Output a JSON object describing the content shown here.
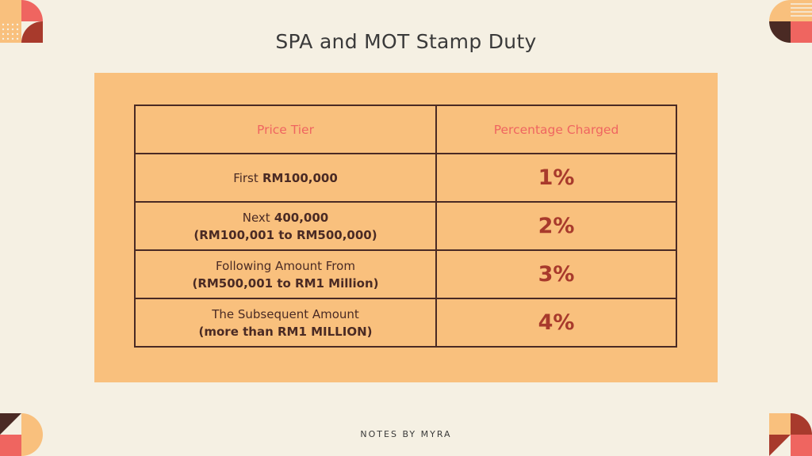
{
  "title": "SPA and MOT Stamp Duty",
  "table": {
    "headers": [
      "Price Tier",
      "Percentage Charged"
    ],
    "rows": [
      {
        "tier_lead": "First",
        "tier_strong": "RM100,000",
        "tier_line2": "",
        "percent": "1%"
      },
      {
        "tier_lead": "Next",
        "tier_strong": "400,000",
        "tier_line2": "(RM100,001 to RM500,000)",
        "percent": "2%"
      },
      {
        "tier_lead": "Following Amount From",
        "tier_strong": "",
        "tier_line2": "(RM500,001 to RM1 Million)",
        "percent": "3%"
      },
      {
        "tier_lead": "The Subsequent Amount",
        "tier_strong": "",
        "tier_line2": "(more than RM1 MILLION)",
        "percent": "4%"
      }
    ]
  },
  "footer": "NOTES BY MYRA",
  "colors": {
    "background": "#f5f0e3",
    "panel": "#f9c07d",
    "header_text": "#ef6560",
    "percent_text": "#a83a2c",
    "border": "#4a2a24"
  },
  "decorations": [
    "corner-shapes-top-left",
    "corner-shapes-top-right",
    "corner-shapes-bottom-left",
    "corner-shapes-bottom-right"
  ]
}
